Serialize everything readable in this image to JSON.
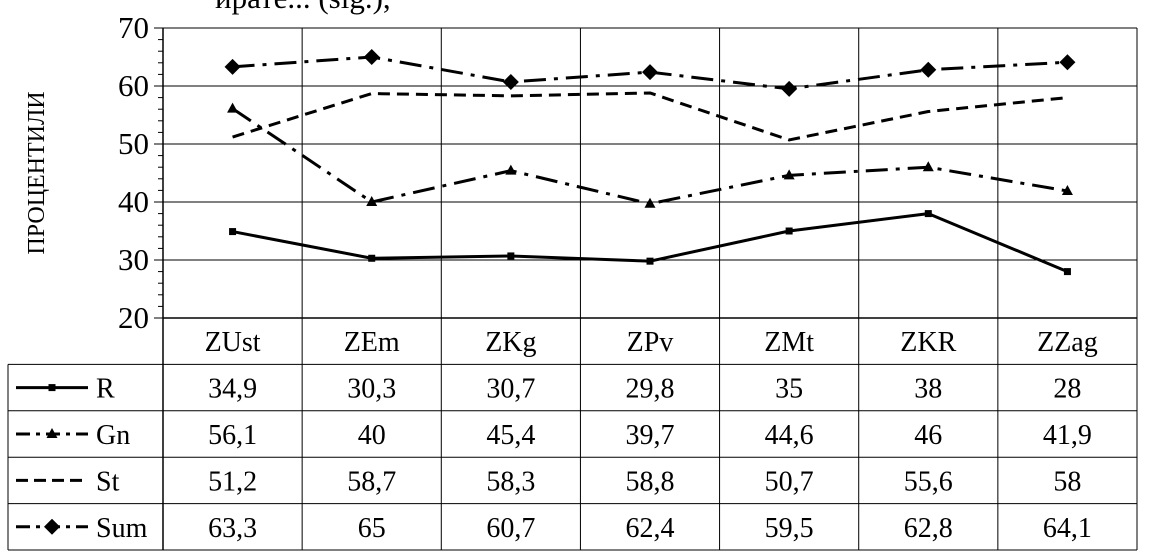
{
  "chart_data": {
    "type": "line",
    "title_fragment": "ирате... (sig.),",
    "ylabel": "ПРОЦЕНТИЛИ",
    "ylim": [
      20,
      70
    ],
    "yticks": [
      20,
      30,
      40,
      50,
      60,
      70
    ],
    "categories": [
      "ZUst",
      "ZEm",
      "ZKg",
      "ZPv",
      "ZMt",
      "ZKR",
      "ZZag"
    ],
    "series": [
      {
        "name": "R",
        "marker": "square",
        "dash": "solid",
        "values": [
          34.9,
          30.3,
          30.7,
          29.8,
          35,
          38,
          28
        ],
        "labels": [
          "34,9",
          "30,3",
          "30,7",
          "29,8",
          "35",
          "38",
          "28"
        ]
      },
      {
        "name": "Gn",
        "marker": "triangle",
        "dash": "dashdot",
        "values": [
          56.1,
          40,
          45.4,
          39.7,
          44.6,
          46,
          41.9
        ],
        "labels": [
          "56,1",
          "40",
          "45,4",
          "39,7",
          "44,6",
          "46",
          "41,9"
        ]
      },
      {
        "name": "St",
        "marker": "none",
        "dash": "dashed",
        "values": [
          51.2,
          58.7,
          58.3,
          58.8,
          50.7,
          55.6,
          58
        ],
        "labels": [
          "51,2",
          "58,7",
          "58,3",
          "58,8",
          "50,7",
          "55,6",
          "58"
        ]
      },
      {
        "name": "Sum",
        "marker": "diamond",
        "dash": "dashdot",
        "values": [
          63.3,
          65,
          60.7,
          62.4,
          59.5,
          62.8,
          64.1
        ],
        "labels": [
          "63,3",
          "65",
          "60,7",
          "62,4",
          "59,5",
          "62,8",
          "64,1"
        ]
      }
    ],
    "grid": true,
    "legend": "data-table"
  }
}
